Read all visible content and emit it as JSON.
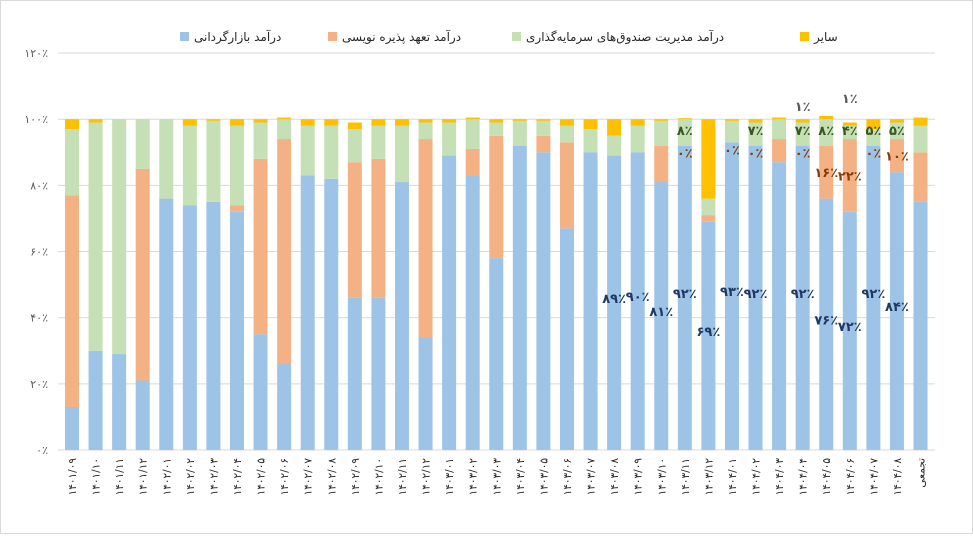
{
  "chart_data": {
    "type": "bar",
    "stacked": true,
    "legend_position": "top",
    "grid": true,
    "ylim": [
      0,
      120
    ],
    "yticks": [
      "۰٪",
      "۲۰٪",
      "۴۰٪",
      "۶۰٪",
      "۸۰٪",
      "۱۰۰٪",
      "۱۲۰٪"
    ],
    "categories": [
      "۱۴۰۱/۰۹",
      "۱۴۰۱/۱۰",
      "۱۴۰۱/۱۱",
      "۱۴۰۱/۱۲",
      "۱۴۰۲/۰۱",
      "۱۴۰۲/۰۲",
      "۱۴۰۲/۰۳",
      "۱۴۰۲/۰۴",
      "۱۴۰۲/۰۵",
      "۱۴۰۲/۰۶",
      "۱۴۰۲/۰۷",
      "۱۴۰۲/۰۸",
      "۱۴۰۲/۰۹",
      "۱۴۰۲/۱۰",
      "۱۴۰۲/۱۱",
      "۱۴۰۲/۱۲",
      "۱۴۰۳/۰۱",
      "۱۴۰۳/۰۲",
      "۱۴۰۳/۰۳",
      "۱۴۰۳/۰۴",
      "۱۴۰۳/۰۵",
      "۱۴۰۳/۰۶",
      "۱۴۰۳/۰۷",
      "۱۴۰۳/۰۸",
      "۱۴۰۳/۰۹",
      "۱۴۰۳/۱۰",
      "۱۴۰۳/۱۱",
      "۱۴۰۳/۱۲",
      "۱۴۰۴/۰۱",
      "۱۴۰۴/۰۲",
      "۱۴۰۴/۰۳",
      "۱۴۰۴/۰۴",
      "۱۴۰۴/۰۵",
      "۱۴۰۴/۰۶",
      "۱۴۰۴/۰۷",
      "۱۴۰۴/۰۸",
      "تجمعی"
    ],
    "series": [
      {
        "name": "درآمد بازارگردانی",
        "color": "#9DC3E6",
        "values": [
          13,
          30,
          29,
          21,
          76,
          74,
          75,
          72,
          35,
          26,
          83,
          82,
          46,
          46,
          81,
          34,
          89,
          83,
          58,
          92,
          90,
          67,
          90,
          89,
          90,
          81,
          92,
          69,
          93,
          92,
          87,
          92,
          76,
          72,
          92,
          84,
          75
        ],
        "labels": [
          null,
          null,
          null,
          null,
          null,
          null,
          null,
          null,
          null,
          null,
          null,
          null,
          null,
          null,
          null,
          null,
          null,
          null,
          null,
          null,
          null,
          null,
          null,
          "۸۹٪",
          "۹۰٪",
          "۸۱٪",
          "۹۲٪",
          "۶۹٪",
          "۹۳٪",
          "۹۲٪",
          null,
          "۹۲٪",
          "۷۶٪",
          "۷۲٪",
          "۹۲٪",
          "۸۴٪",
          null
        ],
        "label_color": "#1F3864"
      },
      {
        "name": "درآمد تعهد پذیره نویسی",
        "color": "#F4B183",
        "values": [
          64,
          0,
          0,
          64,
          0,
          0,
          0,
          2,
          53,
          68,
          0,
          0,
          41,
          42,
          0,
          60,
          0,
          8,
          37,
          0,
          5,
          26,
          0,
          0,
          0,
          11,
          0,
          2,
          0,
          0,
          7,
          0,
          16,
          22,
          0,
          10,
          15
        ],
        "labels": [
          null,
          null,
          null,
          null,
          null,
          null,
          null,
          null,
          null,
          null,
          null,
          null,
          null,
          null,
          null,
          null,
          null,
          null,
          null,
          null,
          null,
          null,
          null,
          null,
          null,
          null,
          "۰٪",
          null,
          "۰٪",
          "۰٪",
          null,
          "۰٪",
          "۱۶٪",
          "۲۲٪",
          "۰٪",
          "۱۰٪",
          null
        ],
        "label_color": "#843C0C"
      },
      {
        "name": "درآمد مدیریت صندوق‌های سرمایه‌گذاری",
        "color": "#C5E0B4",
        "values": [
          20,
          69,
          71,
          15,
          24,
          24,
          24.5,
          24,
          11,
          6,
          15,
          16,
          10,
          10,
          17,
          5,
          10,
          9,
          4,
          7.5,
          4.5,
          5,
          7,
          6,
          8,
          7.5,
          8,
          5,
          6.5,
          7,
          6,
          7,
          8,
          4,
          5,
          5,
          8
        ],
        "labels": [
          null,
          null,
          null,
          null,
          null,
          null,
          null,
          null,
          null,
          null,
          null,
          null,
          null,
          null,
          null,
          null,
          null,
          null,
          null,
          null,
          null,
          null,
          null,
          null,
          null,
          null,
          "۸٪",
          null,
          null,
          "۷٪",
          null,
          "۷٪",
          "۸٪",
          "۴٪",
          "۵٪",
          "۵٪",
          null
        ],
        "label_color": "#375623"
      },
      {
        "name": "سایر",
        "color": "#FFC000",
        "values": [
          3,
          1,
          0,
          0,
          0,
          2,
          0.5,
          2,
          1,
          0.5,
          2,
          2,
          2,
          2,
          2,
          1,
          1,
          0.5,
          1,
          0.5,
          0.5,
          2,
          3,
          5,
          2,
          0.5,
          0.3,
          24,
          0.5,
          1,
          0.5,
          1,
          1,
          1,
          3,
          1,
          2.5
        ],
        "labels": [
          null,
          null,
          null,
          null,
          null,
          null,
          null,
          null,
          null,
          null,
          null,
          null,
          null,
          null,
          null,
          null,
          null,
          null,
          null,
          null,
          null,
          null,
          null,
          null,
          null,
          null,
          null,
          null,
          null,
          null,
          null,
          "۱٪",
          null,
          "۱٪",
          null,
          null,
          null
        ],
        "label_color": "#595959"
      }
    ]
  }
}
